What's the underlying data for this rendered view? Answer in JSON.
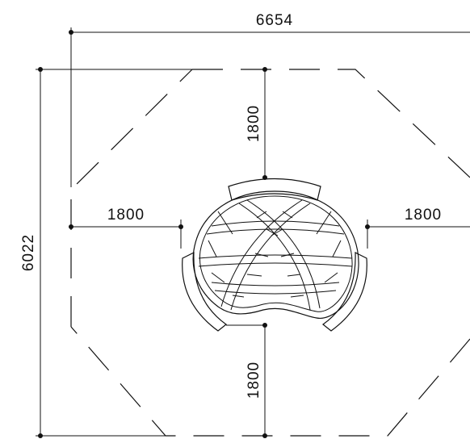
{
  "dimensions": {
    "overall_width": "6654",
    "overall_height": "6022",
    "clearance_top": "1800",
    "clearance_left": "1800",
    "clearance_right": "1800",
    "clearance_bottom": "1800"
  }
}
